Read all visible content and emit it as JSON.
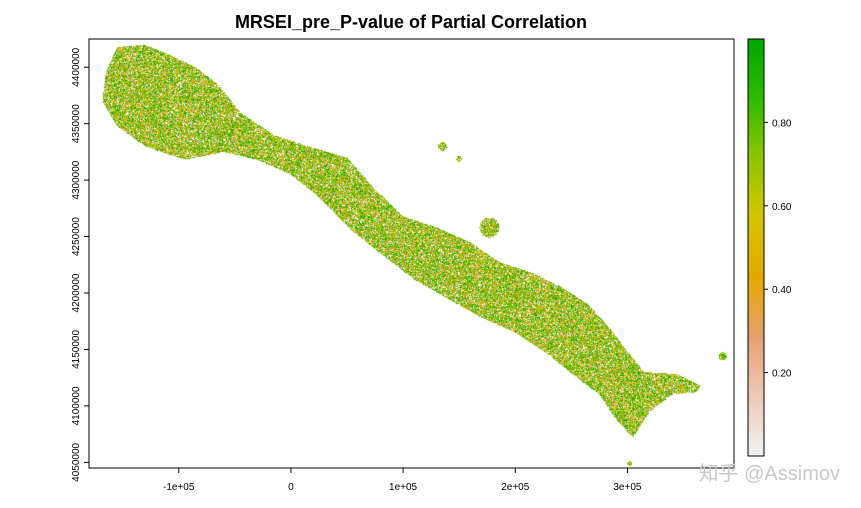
{
  "chart_data": {
    "type": "raster-map",
    "title": "MRSEI_pre_P-value of Partial Correlation",
    "x_axis": {
      "ticks": [
        -100000,
        0,
        100000,
        200000,
        300000
      ],
      "tick_labels": [
        "-1e+05",
        "0",
        "1e+05",
        "2e+05",
        "3e+05"
      ],
      "range": [
        -180000,
        395000
      ]
    },
    "y_axis": {
      "ticks": [
        4050000,
        4100000,
        4150000,
        4200000,
        4250000,
        4300000,
        4350000,
        4400000
      ],
      "tick_labels": [
        "4050000",
        "4100000",
        "4150000",
        "4200000",
        "4250000",
        "4300000",
        "4350000",
        "4400000"
      ],
      "range": [
        4045000,
        4425000
      ]
    },
    "legend": {
      "position": "right",
      "range": [
        0,
        1
      ],
      "ticks": [
        0.2,
        0.4,
        0.6,
        0.8
      ],
      "tick_labels": [
        "0.20",
        "0.40",
        "0.60",
        "0.80"
      ],
      "colors": [
        "#f2f2f2",
        "#eec9b9",
        "#e6a070",
        "#e3a800",
        "#d4c600",
        "#8fc400",
        "#2ebb00",
        "#00a600"
      ]
    },
    "region_outline": [
      [
        -155000,
        4418000
      ],
      [
        -130000,
        4420000
      ],
      [
        -110000,
        4412000
      ],
      [
        -85000,
        4400000
      ],
      [
        -65000,
        4385000
      ],
      [
        -45000,
        4360000
      ],
      [
        -15000,
        4340000
      ],
      [
        15000,
        4330000
      ],
      [
        50000,
        4320000
      ],
      [
        75000,
        4292000
      ],
      [
        100000,
        4268000
      ],
      [
        130000,
        4258000
      ],
      [
        160000,
        4245000
      ],
      [
        185000,
        4228000
      ],
      [
        215000,
        4218000
      ],
      [
        240000,
        4206000
      ],
      [
        265000,
        4190000
      ],
      [
        285000,
        4168000
      ],
      [
        300000,
        4148000
      ],
      [
        315000,
        4130000
      ],
      [
        345000,
        4128000
      ],
      [
        365000,
        4118000
      ],
      [
        362000,
        4112000
      ],
      [
        340000,
        4110000
      ],
      [
        320000,
        4095000
      ],
      [
        305000,
        4072000
      ],
      [
        290000,
        4088000
      ],
      [
        275000,
        4110000
      ],
      [
        255000,
        4125000
      ],
      [
        230000,
        4145000
      ],
      [
        200000,
        4165000
      ],
      [
        170000,
        4178000
      ],
      [
        140000,
        4195000
      ],
      [
        110000,
        4212000
      ],
      [
        80000,
        4235000
      ],
      [
        55000,
        4255000
      ],
      [
        25000,
        4285000
      ],
      [
        0,
        4305000
      ],
      [
        -30000,
        4318000
      ],
      [
        -60000,
        4325000
      ],
      [
        -95000,
        4318000
      ],
      [
        -130000,
        4330000
      ],
      [
        -155000,
        4348000
      ],
      [
        -168000,
        4370000
      ],
      [
        -165000,
        4395000
      ]
    ],
    "islands": [
      [
        {
          "x": 135000,
          "y": 4330000,
          "r": 4000
        },
        {
          "x": 150000,
          "y": 4319000,
          "r": 2500
        }
      ],
      [
        {
          "x": 177000,
          "y": 4258000,
          "r": 9000
        }
      ],
      [
        {
          "x": 385000,
          "y": 4144000,
          "r": 3500
        }
      ],
      [
        {
          "x": 302000,
          "y": 4049000,
          "r": 2000
        }
      ]
    ]
  },
  "watermark": {
    "text": "知乎 @Assimov"
  }
}
